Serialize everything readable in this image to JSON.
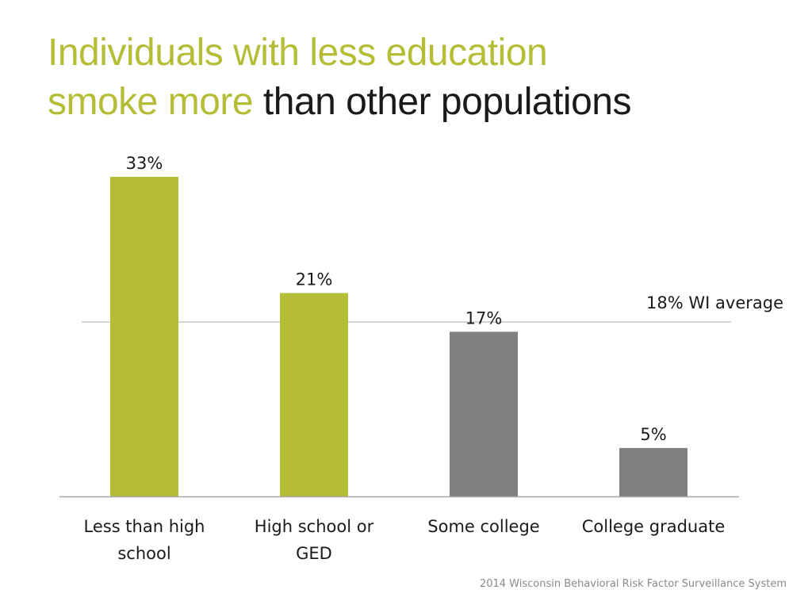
{
  "title": {
    "line1_highlight": "Individuals with less education",
    "line2_highlight": "smoke more",
    "line2_rest": "than other populations"
  },
  "colors": {
    "highlight": "#b5bd36",
    "neutral": "#808080",
    "axis": "#a6a6a6",
    "reference_line": "#c8c8c8",
    "text": "#1a1a1a"
  },
  "source": "2014 Wisconsin Behavioral Risk Factor Surveillance System",
  "chart_data": {
    "type": "bar",
    "categories": [
      "Less than high school",
      "High school or GED",
      "Some college",
      "College graduate"
    ],
    "category_label_lines": [
      [
        "Less than high",
        "school"
      ],
      [
        "High school or",
        "GED"
      ],
      [
        "Some college"
      ],
      [
        "College graduate"
      ]
    ],
    "values": [
      33,
      21,
      17,
      5
    ],
    "value_labels": [
      "33%",
      "21%",
      "17%",
      "5%"
    ],
    "bar_colors": [
      "#b5bd36",
      "#b5bd36",
      "#808080",
      "#808080"
    ],
    "reference_line": {
      "value": 18,
      "label": "18% WI average"
    },
    "ylim": [
      0,
      33
    ],
    "grid": false,
    "legend": "none"
  }
}
